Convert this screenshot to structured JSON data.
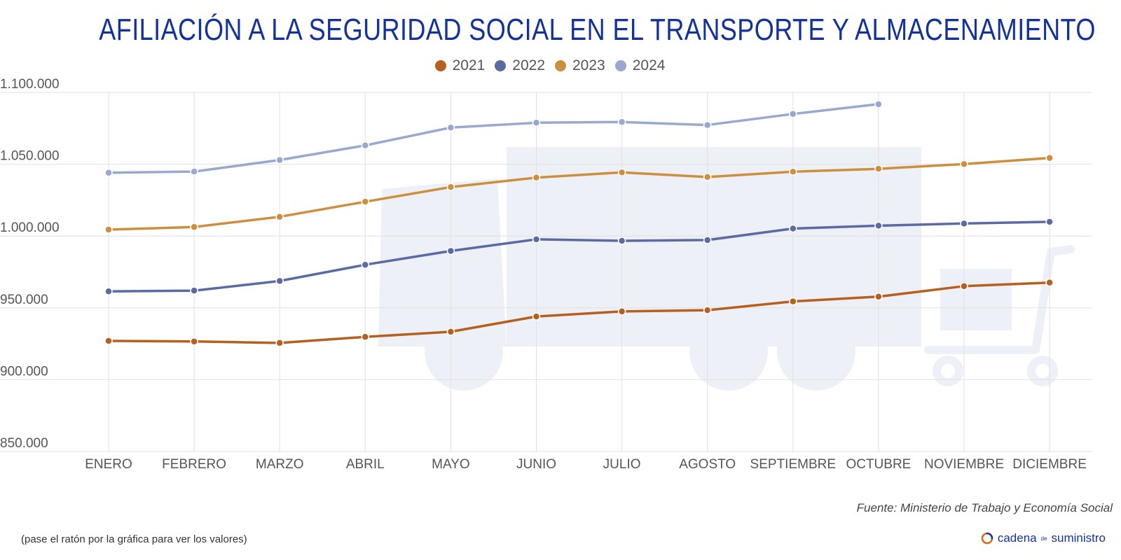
{
  "title": "AFILIACIÓN A LA SEGURIDAD SOCIAL EN EL TRANSPORTE Y ALMACENAMIENTO",
  "source": "Fuente: Ministerio de Trabajo y Economía Social",
  "note": "(pase el ratón por la gráfica para ver los valores)",
  "brand": {
    "part1": "cadena",
    "part2": "de",
    "part3": "suministro",
    "icon": "refresh-circle-icon"
  },
  "colors": {
    "title": "#14329a",
    "grid": "#e0e0e0",
    "axis_text": "#555555",
    "background_icon": "#eef0f7"
  },
  "chart_data": {
    "type": "line",
    "categories": [
      "ENERO",
      "FEBRERO",
      "MARZO",
      "ABRIL",
      "MAYO",
      "JUNIO",
      "JULIO",
      "AGOSTO",
      "SEPTIEMBRE",
      "OCTUBRE",
      "NOVIEMBRE",
      "DICIEMBRE"
    ],
    "y_ticks": [
      {
        "value": 850000,
        "label": "850.000"
      },
      {
        "value": 900000,
        "label": "900.000"
      },
      {
        "value": 950000,
        "label": "950.000"
      },
      {
        "value": 1000000,
        "label": "1.000.000"
      },
      {
        "value": 1050000,
        "label": "1.050.000"
      },
      {
        "value": 1100000,
        "label": "1.100.000"
      }
    ],
    "ylim": [
      850000,
      1100000
    ],
    "grid": true,
    "legend_position": "top",
    "series": [
      {
        "name": "2021",
        "color": "#b5601f",
        "values": [
          927000,
          926600,
          925600,
          929800,
          933400,
          944000,
          947500,
          948400,
          954500,
          957800,
          965100,
          967600
        ]
      },
      {
        "name": "2022",
        "color": "#5b6aa3",
        "values": [
          961500,
          962000,
          968700,
          980000,
          989600,
          997700,
          996700,
          997200,
          1005200,
          1007200,
          1008700,
          1009900
        ]
      },
      {
        "name": "2023",
        "color": "#cc8f3f",
        "values": [
          1004500,
          1006300,
          1013400,
          1023900,
          1034100,
          1040700,
          1044300,
          1041100,
          1044800,
          1046800,
          1050100,
          1054400
        ]
      },
      {
        "name": "2024",
        "color": "#9aa8cf",
        "values": [
          1044100,
          1044900,
          1052900,
          1063100,
          1075500,
          1078900,
          1079400,
          1077300,
          1085000,
          1091800,
          null,
          null
        ]
      }
    ]
  }
}
